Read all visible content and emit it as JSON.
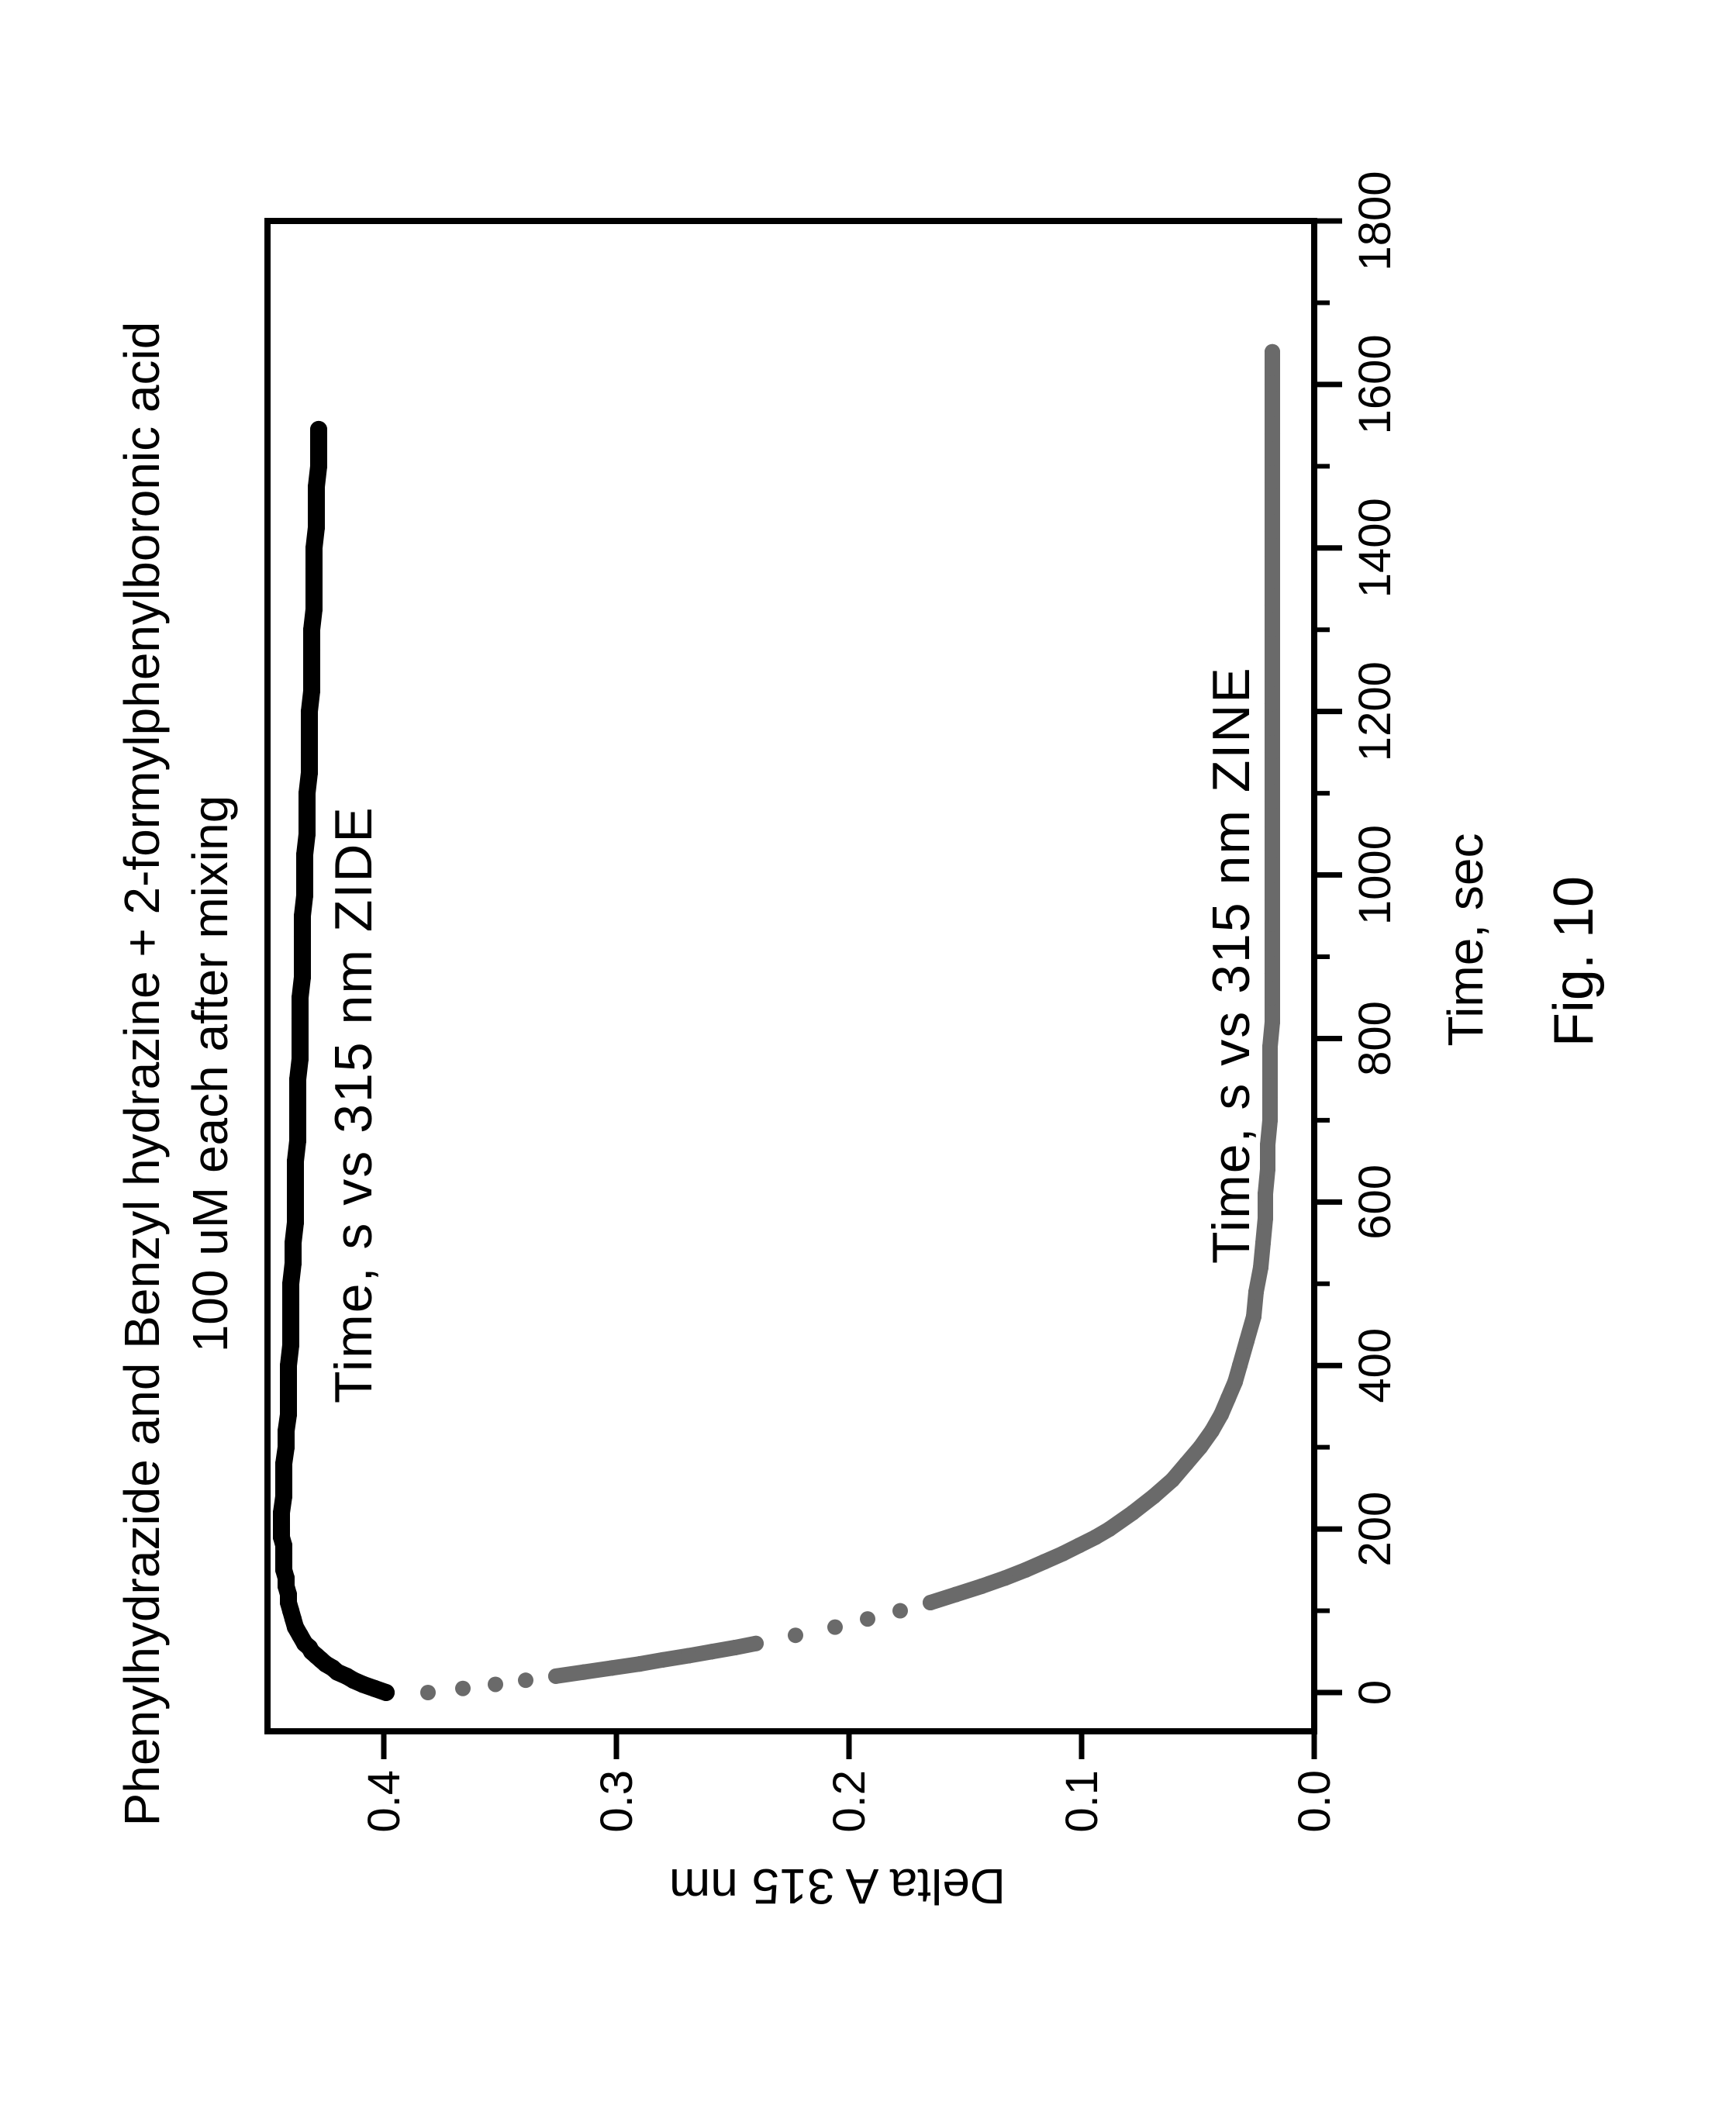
{
  "figure_label": "Fig. 10",
  "chart_data": {
    "type": "scatter",
    "title": "Phenylhydrazide and Benzyl hydrazine + 2-formylphenylboronic acid",
    "subtitle": "100 uM each after mixing",
    "xlabel": "Time, sec",
    "ylabel": "Delta A 315 nm",
    "xlim": [
      -50,
      1800
    ],
    "ylim": [
      0,
      0.45
    ],
    "grid": false,
    "x_major_ticks": [
      0,
      200,
      400,
      600,
      800,
      1000,
      1200,
      1400,
      1600,
      1800
    ],
    "x_tick_labels": [
      "0",
      "200",
      "400",
      "600",
      "800",
      "1000",
      "1200",
      "1400",
      "1600",
      "1800"
    ],
    "x_minor_ticks": [
      100,
      300,
      500,
      700,
      900,
      1100,
      1300,
      1500,
      1700
    ],
    "y_major_ticks": [
      0,
      0.1,
      0.2,
      0.3,
      0.4
    ],
    "y_tick_labels": [
      "0.0",
      "0.1",
      "0.2",
      "0.3",
      "0.4"
    ],
    "colors": {
      "background": "#ffffff",
      "axis": "#000000",
      "zide": "#000000",
      "zine": "#6a6a6a"
    },
    "series": [
      {
        "name": "zide",
        "label": "Time, s vs 315 nm ZIDE",
        "color": "#000000",
        "marker_radius": 11,
        "points": [
          [
            0,
            0.399
          ],
          [
            5,
            0.404
          ],
          [
            10,
            0.409
          ],
          [
            15,
            0.413
          ],
          [
            20,
            0.416
          ],
          [
            25,
            0.42
          ],
          [
            30,
            0.422
          ],
          [
            35,
            0.425
          ],
          [
            40,
            0.427
          ],
          [
            45,
            0.429
          ],
          [
            50,
            0.431
          ],
          [
            55,
            0.432
          ],
          [
            60,
            0.434
          ],
          [
            70,
            0.436
          ],
          [
            80,
            0.438
          ],
          [
            90,
            0.439
          ],
          [
            100,
            0.44
          ],
          [
            110,
            0.441
          ],
          [
            120,
            0.441
          ],
          [
            130,
            0.442
          ],
          [
            140,
            0.442
          ],
          [
            150,
            0.443
          ],
          [
            160,
            0.443
          ],
          [
            170,
            0.443
          ],
          [
            180,
            0.443
          ],
          [
            190,
            0.444
          ],
          [
            200,
            0.444
          ],
          [
            220,
            0.444
          ],
          [
            240,
            0.443
          ],
          [
            260,
            0.443
          ],
          [
            280,
            0.443
          ],
          [
            300,
            0.442
          ],
          [
            320,
            0.442
          ],
          [
            340,
            0.441
          ],
          [
            360,
            0.441
          ],
          [
            380,
            0.441
          ],
          [
            400,
            0.441
          ],
          [
            425,
            0.44
          ],
          [
            450,
            0.44
          ],
          [
            475,
            0.44
          ],
          [
            500,
            0.44
          ],
          [
            525,
            0.439
          ],
          [
            550,
            0.439
          ],
          [
            575,
            0.438
          ],
          [
            600,
            0.438
          ],
          [
            625,
            0.438
          ],
          [
            650,
            0.438
          ],
          [
            675,
            0.437
          ],
          [
            700,
            0.437
          ],
          [
            725,
            0.437
          ],
          [
            750,
            0.437
          ],
          [
            775,
            0.436
          ],
          [
            800,
            0.436
          ],
          [
            825,
            0.436
          ],
          [
            850,
            0.436
          ],
          [
            875,
            0.435
          ],
          [
            900,
            0.435
          ],
          [
            925,
            0.435
          ],
          [
            950,
            0.435
          ],
          [
            975,
            0.434
          ],
          [
            1000,
            0.434
          ],
          [
            1025,
            0.434
          ],
          [
            1050,
            0.433
          ],
          [
            1075,
            0.433
          ],
          [
            1100,
            0.433
          ],
          [
            1125,
            0.432
          ],
          [
            1150,
            0.432
          ],
          [
            1175,
            0.432
          ],
          [
            1200,
            0.432
          ],
          [
            1225,
            0.431
          ],
          [
            1250,
            0.431
          ],
          [
            1275,
            0.431
          ],
          [
            1300,
            0.431
          ],
          [
            1325,
            0.43
          ],
          [
            1350,
            0.43
          ],
          [
            1375,
            0.43
          ],
          [
            1400,
            0.43
          ],
          [
            1425,
            0.429
          ],
          [
            1450,
            0.429
          ],
          [
            1475,
            0.429
          ],
          [
            1500,
            0.428
          ],
          [
            1525,
            0.428
          ],
          [
            1545,
            0.428
          ]
        ]
      },
      {
        "name": "zine",
        "label": "Time, s vs 315 nm ZINE",
        "color": "#6a6a6a",
        "marker_radius": 10,
        "points": [
          [
            0,
            0.381
          ],
          [
            5,
            0.366
          ],
          [
            10,
            0.352
          ],
          [
            15,
            0.339
          ],
          [
            20,
            0.326
          ],
          [
            25,
            0.314
          ],
          [
            30,
            0.302
          ],
          [
            35,
            0.29
          ],
          [
            40,
            0.28
          ],
          [
            45,
            0.269
          ],
          [
            50,
            0.259
          ],
          [
            55,
            0.249
          ],
          [
            60,
            0.24
          ],
          [
            70,
            0.223
          ],
          [
            80,
            0.206
          ],
          [
            90,
            0.192
          ],
          [
            100,
            0.178
          ],
          [
            110,
            0.165
          ],
          [
            120,
            0.154
          ],
          [
            130,
            0.143
          ],
          [
            140,
            0.133
          ],
          [
            150,
            0.124
          ],
          [
            160,
            0.116
          ],
          [
            170,
            0.108
          ],
          [
            180,
            0.101
          ],
          [
            190,
            0.094
          ],
          [
            200,
            0.088
          ],
          [
            220,
            0.078
          ],
          [
            240,
            0.069
          ],
          [
            260,
            0.061
          ],
          [
            280,
            0.055
          ],
          [
            300,
            0.049
          ],
          [
            320,
            0.044
          ],
          [
            340,
            0.04
          ],
          [
            360,
            0.037
          ],
          [
            380,
            0.034
          ],
          [
            400,
            0.032
          ],
          [
            430,
            0.029
          ],
          [
            460,
            0.026
          ],
          [
            490,
            0.025
          ],
          [
            520,
            0.023
          ],
          [
            550,
            0.022
          ],
          [
            580,
            0.021
          ],
          [
            610,
            0.021
          ],
          [
            640,
            0.02
          ],
          [
            670,
            0.02
          ],
          [
            700,
            0.019
          ],
          [
            730,
            0.019
          ],
          [
            760,
            0.019
          ],
          [
            790,
            0.019
          ],
          [
            820,
            0.018
          ],
          [
            850,
            0.018
          ],
          [
            880,
            0.018
          ],
          [
            910,
            0.018
          ],
          [
            940,
            0.018
          ],
          [
            970,
            0.018
          ],
          [
            1000,
            0.018
          ],
          [
            1030,
            0.018
          ],
          [
            1060,
            0.018
          ],
          [
            1090,
            0.018
          ],
          [
            1120,
            0.018
          ],
          [
            1150,
            0.018
          ],
          [
            1180,
            0.018
          ],
          [
            1210,
            0.018
          ],
          [
            1240,
            0.018
          ],
          [
            1270,
            0.018
          ],
          [
            1300,
            0.018
          ],
          [
            1330,
            0.018
          ],
          [
            1360,
            0.018
          ],
          [
            1390,
            0.018
          ],
          [
            1420,
            0.018
          ],
          [
            1450,
            0.018
          ],
          [
            1480,
            0.018
          ],
          [
            1510,
            0.018
          ],
          [
            1540,
            0.018
          ],
          [
            1570,
            0.018
          ],
          [
            1600,
            0.018
          ],
          [
            1620,
            0.018
          ],
          [
            1640,
            0.018
          ]
        ]
      }
    ]
  }
}
